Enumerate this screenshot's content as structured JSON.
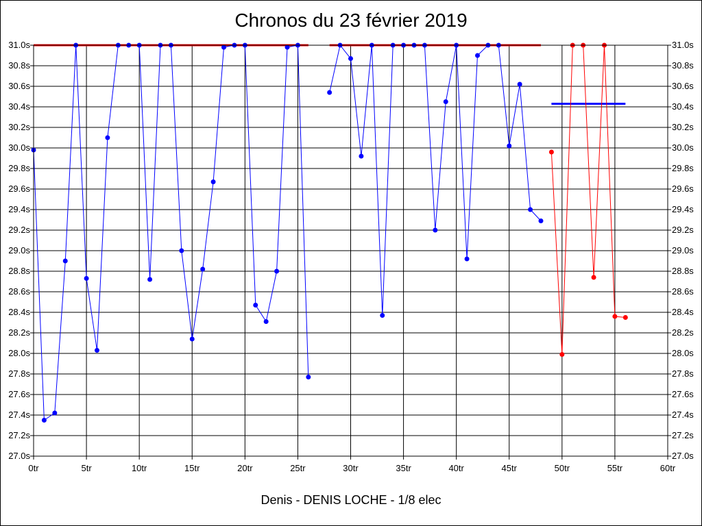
{
  "chart_data": {
    "type": "line",
    "title": "Chronos du 23 février 2019",
    "subtitle": "Denis - DENIS LOCHE - 1/8 elec",
    "xlim": [
      0,
      60
    ],
    "ylim": [
      27.0,
      31.0
    ],
    "x_ticks": [
      0,
      5,
      10,
      15,
      20,
      25,
      30,
      35,
      40,
      45,
      50,
      55,
      60
    ],
    "x_tick_labels": [
      "0tr",
      "5tr",
      "10tr",
      "15tr",
      "20tr",
      "25tr",
      "30tr",
      "35tr",
      "40tr",
      "45tr",
      "50tr",
      "55tr",
      "60tr"
    ],
    "y_ticks": [
      27.0,
      27.2,
      27.4,
      27.6,
      27.8,
      28.0,
      28.2,
      28.4,
      28.6,
      28.8,
      29.0,
      29.2,
      29.4,
      29.6,
      29.8,
      30.0,
      30.2,
      30.4,
      30.6,
      30.8,
      31.0
    ],
    "y_tick_labels": [
      "27.0s",
      "27.2s",
      "27.4s",
      "27.6s",
      "27.8s",
      "28.0s",
      "28.2s",
      "28.4s",
      "28.6s",
      "28.8s",
      "29.0s",
      "29.2s",
      "29.4s",
      "29.6s",
      "29.8s",
      "30.0s",
      "30.2s",
      "30.4s",
      "30.6s",
      "30.8s",
      "31.0s"
    ],
    "y_axis_both_sides": true,
    "grid": true,
    "series": [
      {
        "color": "#0000ff",
        "points": [
          [
            0,
            29.98
          ],
          [
            1,
            27.35
          ],
          [
            2,
            27.42
          ],
          [
            3,
            28.9
          ],
          [
            4,
            31.0
          ],
          [
            5,
            28.73
          ],
          [
            6,
            28.03
          ],
          [
            7,
            30.1
          ],
          [
            8,
            31.0
          ],
          [
            9,
            31.0
          ],
          [
            10,
            31.0
          ],
          [
            11,
            28.72
          ],
          [
            12,
            31.0
          ],
          [
            13,
            31.0
          ],
          [
            14,
            29.0
          ],
          [
            15,
            28.14
          ],
          [
            16,
            28.82
          ],
          [
            17,
            29.67
          ],
          [
            18,
            30.98
          ],
          [
            19,
            31.0
          ],
          [
            20,
            31.0
          ],
          [
            21,
            28.47
          ],
          [
            22,
            28.31
          ],
          [
            23,
            28.8
          ],
          [
            24,
            30.98
          ],
          [
            25,
            31.0
          ],
          [
            26,
            27.77
          ]
        ]
      },
      {
        "color": "#0000ff",
        "points": [
          [
            28,
            30.54
          ],
          [
            29,
            31.0
          ],
          [
            30,
            30.87
          ],
          [
            31,
            29.92
          ],
          [
            32,
            31.0
          ],
          [
            33,
            28.37
          ],
          [
            34,
            31.0
          ],
          [
            35,
            31.0
          ],
          [
            36,
            31.0
          ],
          [
            37,
            31.0
          ],
          [
            38,
            29.2
          ],
          [
            39,
            30.45
          ],
          [
            40,
            31.0
          ],
          [
            41,
            28.92
          ],
          [
            42,
            30.9
          ],
          [
            43,
            31.0
          ],
          [
            44,
            31.0
          ],
          [
            45,
            30.02
          ],
          [
            46,
            30.62
          ],
          [
            47,
            29.4
          ],
          [
            48,
            29.29
          ]
        ]
      },
      {
        "color": "#ff0000",
        "points": [
          [
            49,
            29.96
          ],
          [
            50,
            27.99
          ],
          [
            51,
            31.0
          ],
          [
            52,
            31.0
          ],
          [
            53,
            28.74
          ],
          [
            54,
            31.0
          ],
          [
            55,
            28.36
          ],
          [
            56,
            28.35
          ]
        ]
      }
    ],
    "reference_lines": [
      {
        "color": "#ff0000",
        "x": [
          0,
          26
        ],
        "y": 31.0
      },
      {
        "color": "#ff0000",
        "x": [
          28,
          48
        ],
        "y": 31.0
      },
      {
        "color": "#0000ff",
        "x": [
          49,
          56
        ],
        "y": 30.43
      }
    ]
  }
}
